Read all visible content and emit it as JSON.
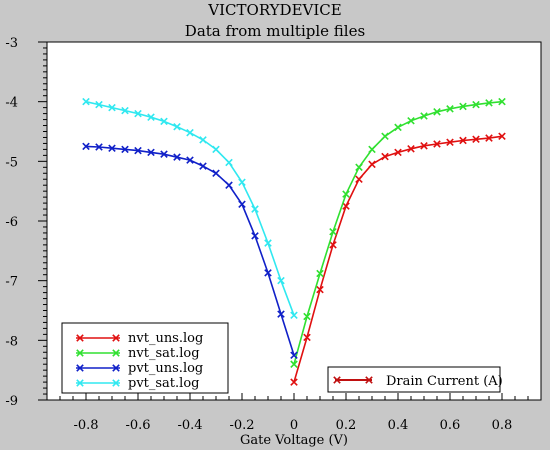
{
  "chart_data": {
    "type": "line",
    "title": "VICTORYDEVICE",
    "subtitle": "Data from multiple files",
    "xlabel": "Gate Voltage (V)",
    "ylabel": "",
    "xlim": [
      -0.95,
      0.95
    ],
    "ylim": [
      -9,
      -3
    ],
    "xticks": [
      -0.8,
      -0.6,
      -0.4,
      -0.2,
      0,
      0.2,
      0.4,
      0.6,
      0.8
    ],
    "xtick_labels": [
      "-0.8",
      "-0.6",
      "-0.4",
      "-0.2",
      "0",
      "0.2",
      "0.4",
      "0.6",
      "0.8"
    ],
    "yticks": [
      -3,
      -4,
      -5,
      -6,
      -7,
      -8,
      -9
    ],
    "ytick_labels": [
      "-3",
      "-4",
      "-5",
      "-6",
      "-7",
      "-8",
      "-9"
    ],
    "grid": false,
    "legend_position": "bottom-left",
    "series": [
      {
        "name": "nvt_uns.log",
        "color": "#e01010",
        "points": [
          [
            0,
            -8.7
          ],
          [
            0.05,
            -7.95
          ],
          [
            0.1,
            -7.15
          ],
          [
            0.15,
            -6.4
          ],
          [
            0.2,
            -5.75
          ],
          [
            0.25,
            -5.3
          ],
          [
            0.3,
            -5.05
          ],
          [
            0.35,
            -4.92
          ],
          [
            0.4,
            -4.85
          ],
          [
            0.45,
            -4.79
          ],
          [
            0.5,
            -4.74
          ],
          [
            0.55,
            -4.71
          ],
          [
            0.6,
            -4.68
          ],
          [
            0.65,
            -4.65
          ],
          [
            0.7,
            -4.63
          ],
          [
            0.75,
            -4.61
          ],
          [
            0.8,
            -4.58
          ]
        ]
      },
      {
        "name": "nvt_sat.log",
        "color": "#30e030",
        "points": [
          [
            0,
            -8.4
          ],
          [
            0.05,
            -7.6
          ],
          [
            0.1,
            -6.88
          ],
          [
            0.15,
            -6.18
          ],
          [
            0.2,
            -5.55
          ],
          [
            0.25,
            -5.1
          ],
          [
            0.3,
            -4.8
          ],
          [
            0.35,
            -4.58
          ],
          [
            0.4,
            -4.43
          ],
          [
            0.45,
            -4.32
          ],
          [
            0.5,
            -4.24
          ],
          [
            0.55,
            -4.17
          ],
          [
            0.6,
            -4.12
          ],
          [
            0.65,
            -4.08
          ],
          [
            0.7,
            -4.05
          ],
          [
            0.75,
            -4.02
          ],
          [
            0.8,
            -4.0
          ]
        ]
      },
      {
        "name": "pvt_uns.log",
        "color": "#1020c8",
        "points": [
          [
            -0.8,
            -4.75
          ],
          [
            -0.75,
            -4.76
          ],
          [
            -0.7,
            -4.78
          ],
          [
            -0.65,
            -4.8
          ],
          [
            -0.6,
            -4.82
          ],
          [
            -0.55,
            -4.85
          ],
          [
            -0.5,
            -4.88
          ],
          [
            -0.45,
            -4.93
          ],
          [
            -0.4,
            -4.98
          ],
          [
            -0.35,
            -5.08
          ],
          [
            -0.3,
            -5.2
          ],
          [
            -0.25,
            -5.4
          ],
          [
            -0.2,
            -5.72
          ],
          [
            -0.15,
            -6.25
          ],
          [
            -0.1,
            -6.87
          ],
          [
            -0.05,
            -7.56
          ],
          [
            0,
            -8.25
          ]
        ]
      },
      {
        "name": "pvt_sat.log",
        "color": "#30e8f0",
        "points": [
          [
            -0.8,
            -4.0
          ],
          [
            -0.75,
            -4.05
          ],
          [
            -0.7,
            -4.1
          ],
          [
            -0.65,
            -4.15
          ],
          [
            -0.6,
            -4.2
          ],
          [
            -0.55,
            -4.26
          ],
          [
            -0.5,
            -4.33
          ],
          [
            -0.45,
            -4.42
          ],
          [
            -0.4,
            -4.52
          ],
          [
            -0.35,
            -4.64
          ],
          [
            -0.3,
            -4.8
          ],
          [
            -0.25,
            -5.02
          ],
          [
            -0.2,
            -5.35
          ],
          [
            -0.15,
            -5.8
          ],
          [
            -0.1,
            -6.37
          ],
          [
            -0.05,
            -7.0
          ],
          [
            0,
            -7.58
          ]
        ]
      }
    ],
    "marker_legend": {
      "label": "Drain Current (A)",
      "color": "#c01010"
    }
  }
}
